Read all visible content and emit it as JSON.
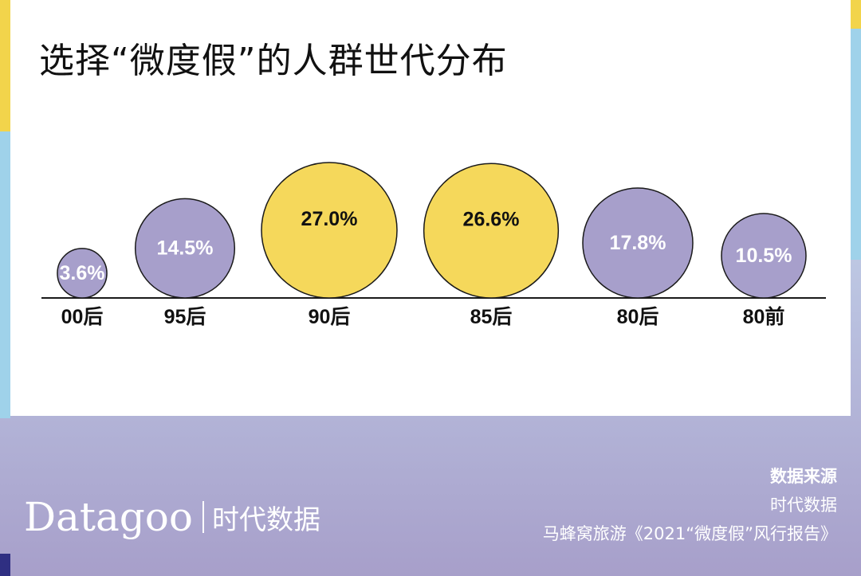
{
  "title": "选择“微度假”的人群世代分布",
  "chart_data": {
    "type": "bubble",
    "title": "选择“微度假”的人群世代分布",
    "categories": [
      "00后",
      "95后",
      "90后",
      "85后",
      "80后",
      "80前"
    ],
    "values": [
      3.6,
      14.5,
      27.0,
      26.6,
      17.8,
      10.5
    ],
    "labels": [
      "3.6%",
      "14.5%",
      "27.0%",
      "26.6%",
      "17.8%",
      "10.5%"
    ],
    "unit": "%",
    "highlighted": [
      "90后",
      "85后"
    ],
    "colors": {
      "default": "#a79fcb",
      "highlight": "#f5d85b",
      "axis": "#1a1a1a"
    }
  },
  "footer": {
    "brand_name": "Datagoo",
    "brand_cn": "时代数据",
    "source_title": "数据来源",
    "source_lines": [
      "时代数据",
      "马蜂窝旅游《2021“微度假”风行报告》"
    ]
  }
}
